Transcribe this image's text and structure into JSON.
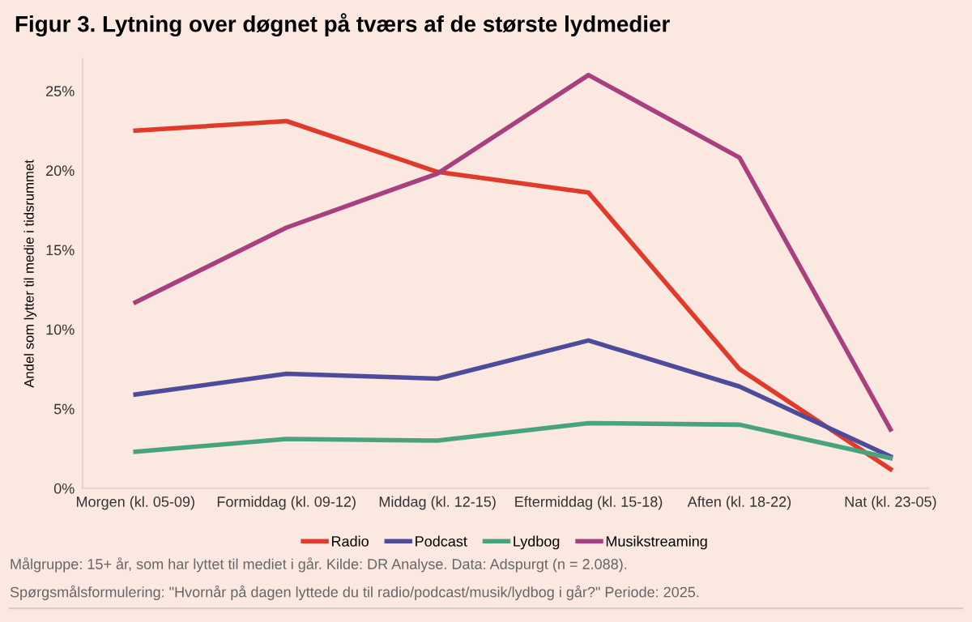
{
  "chart_data": {
    "type": "line",
    "title": "Figur 3. Lytning over døgnet på tværs af de største lydmedier",
    "ylabel": "Andel som lytter til medie i tidsrummet",
    "categories": [
      "Morgen (kl. 05-09)",
      "Formiddag (kl. 09-12)",
      "Middag (kl. 12-15)",
      "Eftermiddag (kl. 15-18)",
      "Aften (kl. 18-22)",
      "Nat (kl. 23-05)"
    ],
    "series": [
      {
        "name": "Radio",
        "color": "#e03a2a",
        "values": [
          22.5,
          23.1,
          19.9,
          18.6,
          7.5,
          1.2
        ]
      },
      {
        "name": "Podcast",
        "color": "#4f4b9b",
        "values": [
          5.9,
          7.2,
          6.9,
          9.3,
          6.4,
          2.0
        ]
      },
      {
        "name": "Lydbog",
        "color": "#4aa37f",
        "values": [
          2.3,
          3.1,
          3.0,
          4.1,
          4.0,
          1.9
        ]
      },
      {
        "name": "Musikstreaming",
        "color": "#a8407f",
        "values": [
          11.7,
          16.4,
          19.8,
          26.0,
          20.8,
          3.7
        ]
      }
    ],
    "ylim": [
      0,
      27
    ],
    "yticks": [
      {
        "value": 0,
        "label": "0%"
      },
      {
        "value": 5,
        "label": "5%"
      },
      {
        "value": 10,
        "label": "10%"
      },
      {
        "value": 15,
        "label": "15%"
      },
      {
        "value": 20,
        "label": "20%"
      },
      {
        "value": 25,
        "label": "25%"
      }
    ],
    "grid": false,
    "legend": "bottom",
    "marker": "none",
    "line_style": "solid",
    "annotations": [
      "Målgruppe: 15+ år, som har lyttet til mediet i går. Kilde: DR Analyse. Data: Adspurgt (n = 2.088).",
      "Spørgsmålsformulering: \"Hvornår på dagen lyttede du til radio/podcast/musik/lydbog i går?\" Periode: 2025."
    ]
  }
}
